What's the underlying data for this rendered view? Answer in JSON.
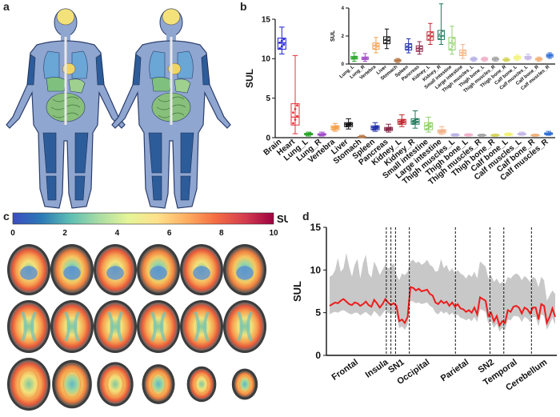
{
  "panels": {
    "a": "a",
    "b": "b",
    "c": "c",
    "d": "d"
  },
  "colorbar": {
    "label": "SUL",
    "ticks": [
      "0",
      "2",
      "4",
      "6",
      "8",
      "10"
    ],
    "colors": [
      "#3b4cc0",
      "#2c7bb6",
      "#5fbfb3",
      "#abdda4",
      "#e6f598",
      "#fee08b",
      "#fdae61",
      "#f46d43",
      "#d53e4f",
      "#9e0142"
    ]
  },
  "chart_data": [
    {
      "type": "box",
      "ylabel": "SUL",
      "ylim": [
        0,
        15
      ],
      "yticks": [
        0,
        5,
        10,
        15
      ],
      "categories": [
        "Brain",
        "Heart",
        "Lung_L",
        "Lung_R",
        "Vertebra",
        "Liver",
        "Stomach",
        "Spleen",
        "Pancreas",
        "Kidney_L",
        "Kidney_R",
        "Small intestine",
        "Large intestine",
        "Thigh muscles_L",
        "Thigh bone_L",
        "Thigh muscles_R",
        "Thigh bone_R",
        "Calf bone_L",
        "Calf muscles_L",
        "Calf bone_R",
        "Calf muscles_R"
      ],
      "colors": [
        "#1f1fd6",
        "#e8323a",
        "#2aa52a",
        "#a24cc9",
        "#f5a04a",
        "#111111",
        "#b77a4a",
        "#1f2fa8",
        "#8a2a4a",
        "#c0262e",
        "#1f7a5a",
        "#8fd16a",
        "#f2b58a",
        "#b9b3e6",
        "#f0b0c8",
        "#a6a6a6",
        "#d4d45a",
        "#f2f27a",
        "#c7b8e8",
        "#f2b27a",
        "#2f6fd6"
      ],
      "median": [
        12.0,
        2.6,
        0.45,
        0.4,
        1.3,
        1.7,
        0.1,
        1.3,
        1.1,
        2.0,
        2.0,
        1.5,
        0.8,
        0.35,
        0.35,
        0.3,
        0.3,
        0.4,
        0.45,
        0.3,
        0.5
      ],
      "q1": [
        11.2,
        1.6,
        0.35,
        0.32,
        1.0,
        1.4,
        0.07,
        1.0,
        0.9,
        1.7,
        1.7,
        1.0,
        0.6,
        0.28,
        0.28,
        0.25,
        0.25,
        0.32,
        0.38,
        0.25,
        0.4
      ],
      "q3": [
        12.6,
        4.3,
        0.55,
        0.5,
        1.5,
        1.9,
        0.15,
        1.5,
        1.3,
        2.3,
        2.4,
        1.9,
        1.0,
        0.42,
        0.42,
        0.36,
        0.36,
        0.5,
        0.55,
        0.36,
        0.6
      ],
      "min": [
        10.6,
        0.5,
        0.2,
        0.2,
        0.8,
        1.1,
        0.02,
        0.8,
        0.7,
        1.4,
        1.2,
        0.7,
        0.4,
        0.2,
        0.2,
        0.18,
        0.18,
        0.25,
        0.3,
        0.18,
        0.3
      ],
      "max": [
        14.0,
        10.4,
        0.7,
        0.7,
        1.8,
        2.4,
        0.3,
        1.9,
        1.7,
        2.9,
        3.4,
        2.6,
        1.4,
        0.5,
        0.5,
        0.45,
        0.45,
        0.6,
        0.7,
        0.45,
        0.8
      ]
    },
    {
      "type": "box",
      "ylabel": "SUL",
      "ylim": [
        0,
        4
      ],
      "yticks": [
        0,
        2,
        4
      ],
      "categories": [
        "Lung_L",
        "Lung_R",
        "Vertebra",
        "Liver",
        "Stomach",
        "Spleen",
        "Pancreas",
        "Kidney_L",
        "Kidney_R",
        "Small intestine",
        "Large intestine",
        "Thigh muscles_L",
        "Thigh bone_L",
        "Thigh muscles_R",
        "Thigh bone_R",
        "Calf bone_L",
        "Calf muscles_L",
        "Calf bone_R",
        "Calf muscles_R"
      ],
      "colors": [
        "#2aa52a",
        "#a24cc9",
        "#f5a04a",
        "#111111",
        "#b77a4a",
        "#1f2fa8",
        "#8a2a4a",
        "#c0262e",
        "#1f7a5a",
        "#8fd16a",
        "#f2b58a",
        "#b9b3e6",
        "#f0b0c8",
        "#a6a6a6",
        "#d4d45a",
        "#f2f27a",
        "#c7b8e8",
        "#f2b27a",
        "#2f6fd6"
      ],
      "median": [
        0.45,
        0.4,
        1.3,
        1.7,
        0.25,
        1.2,
        1.1,
        2.0,
        2.0,
        1.5,
        0.8,
        0.35,
        0.35,
        0.35,
        0.3,
        0.45,
        0.45,
        0.35,
        0.6
      ],
      "q1": [
        0.35,
        0.32,
        1.05,
        1.45,
        0.18,
        1.0,
        0.9,
        1.7,
        1.75,
        1.0,
        0.6,
        0.28,
        0.28,
        0.28,
        0.25,
        0.35,
        0.38,
        0.28,
        0.5
      ],
      "q3": [
        0.55,
        0.5,
        1.5,
        1.95,
        0.32,
        1.45,
        1.3,
        2.3,
        2.4,
        1.9,
        1.0,
        0.42,
        0.42,
        0.42,
        0.36,
        0.55,
        0.55,
        0.42,
        0.7
      ],
      "min": [
        0.2,
        0.2,
        0.8,
        1.1,
        0.1,
        0.8,
        0.7,
        1.4,
        1.4,
        0.7,
        0.4,
        0.2,
        0.2,
        0.2,
        0.18,
        0.25,
        0.3,
        0.2,
        0.4
      ],
      "max": [
        0.8,
        0.75,
        1.9,
        2.5,
        0.4,
        1.8,
        1.6,
        2.9,
        4.3,
        2.7,
        1.4,
        0.5,
        0.5,
        0.5,
        0.45,
        0.65,
        0.7,
        0.5,
        0.8
      ]
    },
    {
      "type": "line",
      "ylabel": "SUL",
      "ylim": [
        0,
        15
      ],
      "yticks": [
        0,
        5,
        10,
        15
      ],
      "region_labels": [
        "Frontal",
        "Insula",
        "SN1",
        "Occipital",
        "Parietal",
        "SN2",
        "Temporal",
        "Cerebellum"
      ],
      "series_color": "#ee1c1c",
      "band_color": "#c8c8c8",
      "mean": [
        5.8,
        6.0,
        6.2,
        6.1,
        6.4,
        6.6,
        6.3,
        6.0,
        5.9,
        6.2,
        6.1,
        5.8,
        6.0,
        6.3,
        5.9,
        5.7,
        6.5,
        6.1,
        5.6,
        6.0,
        6.6,
        6.2,
        5.9,
        6.1,
        5.8,
        4.0,
        4.2,
        3.8,
        4.5,
        8.0,
        7.9,
        7.6,
        7.8,
        7.5,
        7.6,
        7.7,
        7.2,
        7.0,
        6.2,
        6.0,
        6.4,
        6.1,
        6.3,
        5.8,
        6.2,
        5.7,
        6.0,
        5.5,
        5.4,
        5.1,
        5.3,
        5.0,
        5.6,
        4.8,
        6.8,
        6.6,
        6.4,
        4.6,
        5.0,
        4.0,
        4.6,
        3.5,
        4.0,
        3.8,
        5.3,
        5.1,
        5.7,
        5.8,
        5.6,
        4.9,
        5.6,
        5.4,
        4.9,
        5.6,
        5.6,
        4.2,
        6.0,
        5.8,
        3.8,
        4.5,
        5.5,
        4.5
      ],
      "upper": [
        9.2,
        9.4,
        10.0,
        11.4,
        9.8,
        10.2,
        12.0,
        10.4,
        9.2,
        10.6,
        11.3,
        9.0,
        10.8,
        11.8,
        9.6,
        9.1,
        11.0,
        10.3,
        9.4,
        10.0,
        10.6,
        10.2,
        10.4,
        10.8,
        9.4,
        8.8,
        9.6,
        9.4,
        9.8,
        11.0,
        11.2,
        10.8,
        11.0,
        10.6,
        10.8,
        11.2,
        10.6,
        10.4,
        9.8,
        9.9,
        11.3,
        10.2,
        10.6,
        9.8,
        10.2,
        9.6,
        10.0,
        9.6,
        9.4,
        9.0,
        9.5,
        9.2,
        9.8,
        9.0,
        11.0,
        10.7,
        10.4,
        9.0,
        9.4,
        8.6,
        9.0,
        8.4,
        8.6,
        8.4,
        9.2,
        9.0,
        9.4,
        9.6,
        9.4,
        8.8,
        9.3,
        9.0,
        8.6,
        9.2,
        9.0,
        8.0,
        9.2,
        8.8,
        6.4,
        7.0,
        7.6,
        7.2
      ],
      "lower": [
        4.8,
        5.0,
        5.1,
        5.0,
        5.2,
        5.3,
        5.1,
        4.9,
        4.8,
        5.0,
        5.0,
        4.7,
        4.9,
        5.1,
        4.8,
        4.6,
        5.2,
        4.9,
        4.5,
        4.9,
        5.3,
        5.0,
        4.8,
        4.9,
        4.7,
        3.2,
        3.4,
        3.0,
        3.6,
        6.4,
        6.3,
        6.1,
        6.2,
        6.0,
        6.1,
        6.2,
        5.8,
        5.6,
        5.0,
        4.8,
        5.2,
        4.9,
        5.1,
        4.7,
        5.0,
        4.6,
        4.8,
        4.4,
        4.3,
        4.1,
        4.3,
        4.0,
        4.5,
        3.9,
        5.4,
        5.3,
        5.1,
        3.7,
        4.0,
        3.2,
        3.7,
        2.8,
        3.2,
        3.0,
        4.2,
        4.1,
        4.6,
        4.6,
        4.5,
        3.9,
        4.5,
        4.3,
        3.9,
        4.5,
        4.5,
        3.4,
        4.8,
        4.6,
        3.0,
        3.6,
        4.4,
        3.6
      ]
    }
  ]
}
